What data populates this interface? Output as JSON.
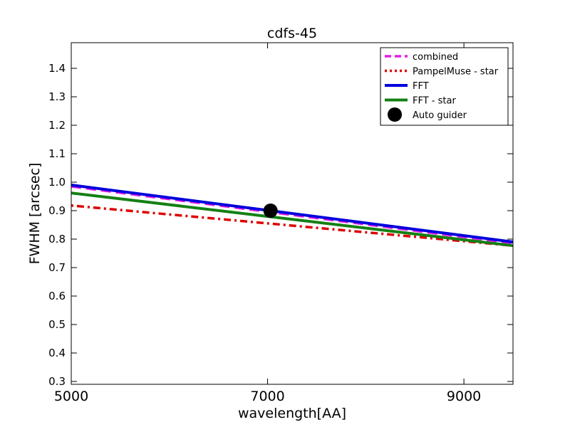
{
  "chart_data": {
    "type": "line",
    "title": "cdfs-45",
    "xlabel": "wavelength[AA]",
    "ylabel": "FWHM [arcsec]",
    "xlim": [
      5000,
      9500
    ],
    "ylim": [
      0.29,
      1.49
    ],
    "xticks": [
      5000,
      7000,
      9000
    ],
    "xtick_labels": [
      "5000",
      "7000",
      "9000"
    ],
    "yticks": [
      0.3,
      0.4,
      0.5,
      0.6,
      0.7,
      0.8,
      0.9,
      1.0,
      1.1,
      1.2,
      1.3,
      1.4
    ],
    "ytick_labels": [
      "0.3",
      "0.4",
      "0.5",
      "0.6",
      "0.7",
      "0.8",
      "0.9",
      "1.0",
      "1.1",
      "1.2",
      "1.3",
      "1.4"
    ],
    "grid": false,
    "legend_position": "top-right",
    "series": [
      {
        "name": "combined",
        "style": "dashed",
        "color": "#e61ee6",
        "x": [
          5000,
          9500
        ],
        "y": [
          0.985,
          0.785
        ]
      },
      {
        "name": "PampelMuse - star",
        "style": "dashdot",
        "color": "#dd0000",
        "x": [
          5000,
          9500
        ],
        "y": [
          0.918,
          0.777
        ]
      },
      {
        "name": "FFT",
        "style": "solid",
        "color": "#0000dd",
        "x": [
          5000,
          9500
        ],
        "y": [
          0.99,
          0.79
        ]
      },
      {
        "name": "FFT - star",
        "style": "solid",
        "color": "#138013",
        "x": [
          5000,
          9500
        ],
        "y": [
          0.962,
          0.777
        ]
      }
    ],
    "points": [
      {
        "name": "Auto guider",
        "color": "#000000",
        "x": 7030,
        "y": 0.9
      }
    ]
  }
}
